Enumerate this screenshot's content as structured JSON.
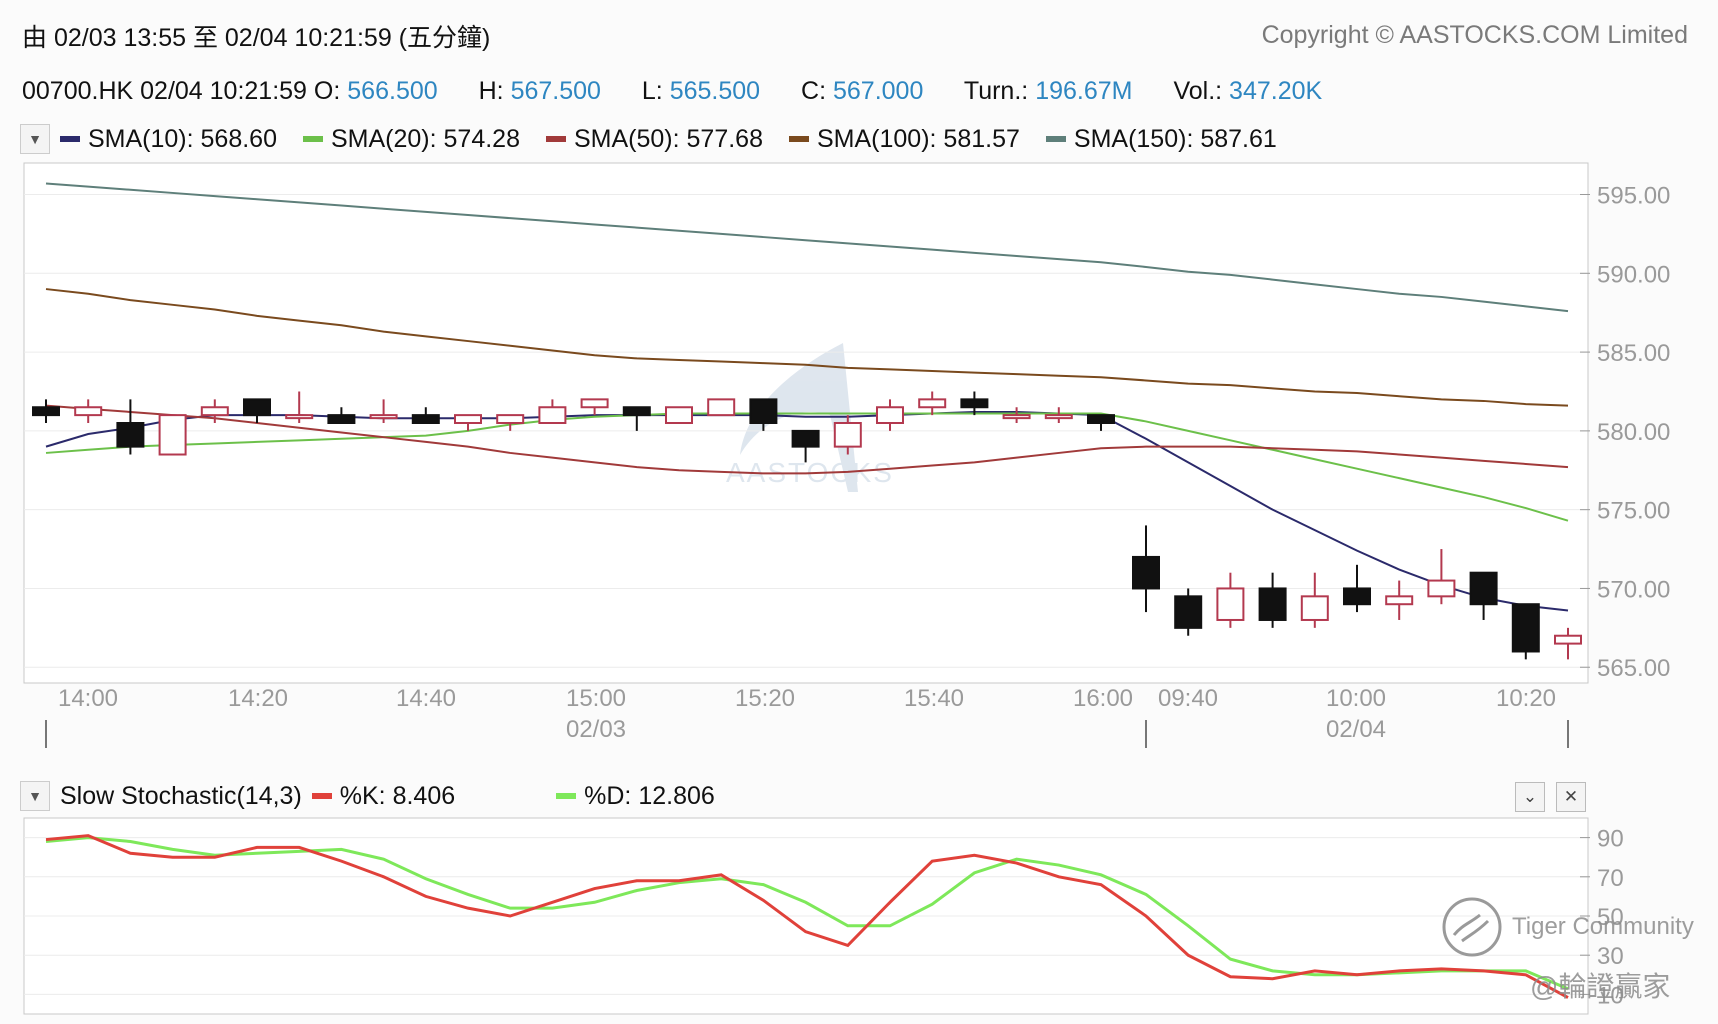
{
  "header": {
    "range_text": "由  02/03 13:55 至  02/04 10:21:59 (五分鐘)",
    "copyright": "Copyright © AASTOCKS.COM Limited"
  },
  "ohlc": {
    "symbol_time": "00700.HK 02/04 10:21:59",
    "o_label": "O:",
    "o_value": "566.500",
    "h_label": "H:",
    "h_value": "567.500",
    "l_label": "L:",
    "l_value": "565.500",
    "c_label": "C:",
    "c_value": "567.000",
    "turn_label": "Turn.:",
    "turn_value": "196.67M",
    "vol_label": "Vol.:",
    "vol_value": "347.20K"
  },
  "sma_legend": [
    {
      "label": "SMA(10): 568.60",
      "color": "#2b2a6b"
    },
    {
      "label": "SMA(20): 574.28",
      "color": "#6cc04a"
    },
    {
      "label": "SMA(50): 577.68",
      "color": "#a13a3a"
    },
    {
      "label": "SMA(100): 581.57",
      "color": "#7a4a1e"
    },
    {
      "label": "SMA(150): 587.61",
      "color": "#5e7f7a"
    }
  ],
  "stoch_legend": {
    "title": "Slow Stochastic(14,3)",
    "k_label": "%K: 8.406",
    "k_color": "#e0413a",
    "d_label": "%D: 12.806",
    "d_color": "#7ee85a"
  },
  "watermarks": {
    "chart_logo": "AASTOCKS",
    "tiger": "Tiger Community",
    "user": "@輪證贏家"
  },
  "chart_data": [
    {
      "type": "candlestick",
      "title": "",
      "ylim": [
        564,
        597
      ],
      "y_ticks": [
        "595.00",
        "590.00",
        "585.00",
        "580.00",
        "575.00",
        "570.00",
        "565.00"
      ],
      "x_ticks": [
        "14:00",
        "14:20",
        "14:40",
        "15:00",
        "15:20",
        "15:40",
        "16:00",
        "09:40",
        "10:00",
        "10:20"
      ],
      "date_labels": [
        "02/03",
        "02/04"
      ],
      "candles": [
        {
          "o": 581.5,
          "h": 582.0,
          "l": 580.5,
          "c": 581.0
        },
        {
          "o": 581.0,
          "h": 582.0,
          "l": 580.5,
          "c": 581.5
        },
        {
          "o": 580.5,
          "h": 582.0,
          "l": 578.5,
          "c": 579.0
        },
        {
          "o": 578.5,
          "h": 581.0,
          "l": 578.5,
          "c": 581.0
        },
        {
          "o": 581.0,
          "h": 582.0,
          "l": 580.5,
          "c": 581.5
        },
        {
          "o": 582.0,
          "h": 582.0,
          "l": 580.5,
          "c": 581.0
        },
        {
          "o": 581.0,
          "h": 582.5,
          "l": 580.5,
          "c": 581.0
        },
        {
          "o": 581.0,
          "h": 581.5,
          "l": 580.5,
          "c": 580.5
        },
        {
          "o": 581.0,
          "h": 582.0,
          "l": 580.5,
          "c": 581.0
        },
        {
          "o": 581.0,
          "h": 581.5,
          "l": 580.5,
          "c": 580.5
        },
        {
          "o": 580.5,
          "h": 581.0,
          "l": 580.0,
          "c": 581.0
        },
        {
          "o": 580.5,
          "h": 581.0,
          "l": 580.0,
          "c": 581.0
        },
        {
          "o": 580.5,
          "h": 582.0,
          "l": 580.5,
          "c": 581.5
        },
        {
          "o": 581.5,
          "h": 582.0,
          "l": 581.0,
          "c": 582.0
        },
        {
          "o": 581.5,
          "h": 581.5,
          "l": 580.0,
          "c": 581.0
        },
        {
          "o": 580.5,
          "h": 581.5,
          "l": 580.5,
          "c": 581.5
        },
        {
          "o": 581.0,
          "h": 582.0,
          "l": 581.0,
          "c": 582.0
        },
        {
          "o": 582.0,
          "h": 582.0,
          "l": 580.0,
          "c": 580.5
        },
        {
          "o": 580.0,
          "h": 580.0,
          "l": 578.0,
          "c": 579.0
        },
        {
          "o": 579.0,
          "h": 581.0,
          "l": 578.5,
          "c": 580.5
        },
        {
          "o": 580.5,
          "h": 582.0,
          "l": 580.0,
          "c": 581.5
        },
        {
          "o": 581.5,
          "h": 582.5,
          "l": 581.0,
          "c": 582.0
        },
        {
          "o": 582.0,
          "h": 582.5,
          "l": 581.0,
          "c": 581.5
        },
        {
          "o": 581.0,
          "h": 581.5,
          "l": 580.5,
          "c": 581.0
        },
        {
          "o": 581.0,
          "h": 581.5,
          "l": 580.5,
          "c": 581.0
        },
        {
          "o": 581.0,
          "h": 581.0,
          "l": 580.0,
          "c": 580.5
        },
        {
          "o": 572.0,
          "h": 574.0,
          "l": 568.5,
          "c": 570.0
        },
        {
          "o": 569.5,
          "h": 570.0,
          "l": 567.0,
          "c": 567.5
        },
        {
          "o": 568.0,
          "h": 571.0,
          "l": 567.5,
          "c": 570.0
        },
        {
          "o": 570.0,
          "h": 571.0,
          "l": 567.5,
          "c": 568.0
        },
        {
          "o": 568.0,
          "h": 571.0,
          "l": 567.5,
          "c": 569.5
        },
        {
          "o": 570.0,
          "h": 571.5,
          "l": 568.5,
          "c": 569.0
        },
        {
          "o": 569.0,
          "h": 570.5,
          "l": 568.0,
          "c": 569.5
        },
        {
          "o": 569.5,
          "h": 572.5,
          "l": 569.0,
          "c": 570.5
        },
        {
          "o": 571.0,
          "h": 571.0,
          "l": 568.0,
          "c": 569.0
        },
        {
          "o": 569.0,
          "h": 569.0,
          "l": 565.5,
          "c": 566.0
        },
        {
          "o": 566.5,
          "h": 567.5,
          "l": 565.5,
          "c": 567.0
        }
      ],
      "series": [
        {
          "name": "SMA(10)",
          "values": [
            579.0,
            579.8,
            580.2,
            580.7,
            581.0,
            581.0,
            581.0,
            580.9,
            580.8,
            580.8,
            580.8,
            580.8,
            580.9,
            581.0,
            581.0,
            581.0,
            581.0,
            581.0,
            580.9,
            580.9,
            581.0,
            581.1,
            581.2,
            581.2,
            581.1,
            581.0,
            579.5,
            578.0,
            576.5,
            575.0,
            573.7,
            572.4,
            571.2,
            570.2,
            569.4,
            568.9,
            568.6
          ]
        },
        {
          "name": "SMA(20)",
          "values": [
            578.6,
            578.8,
            579.0,
            579.1,
            579.2,
            579.3,
            579.4,
            579.5,
            579.6,
            579.7,
            580.0,
            580.4,
            580.7,
            580.9,
            581.0,
            581.1,
            581.1,
            581.1,
            581.1,
            581.1,
            581.1,
            581.1,
            581.1,
            581.1,
            581.1,
            581.1,
            580.6,
            580.0,
            579.4,
            578.8,
            578.2,
            577.6,
            577.0,
            576.4,
            575.8,
            575.1,
            574.3
          ]
        },
        {
          "name": "SMA(50)",
          "values": [
            581.6,
            581.4,
            581.2,
            581.0,
            580.8,
            580.5,
            580.2,
            579.9,
            579.6,
            579.3,
            579.0,
            578.6,
            578.3,
            578.0,
            577.7,
            577.5,
            577.4,
            577.3,
            577.3,
            577.4,
            577.6,
            577.8,
            578.0,
            578.3,
            578.6,
            578.9,
            579.0,
            579.0,
            579.0,
            578.9,
            578.8,
            578.7,
            578.5,
            578.3,
            578.1,
            577.9,
            577.7
          ]
        },
        {
          "name": "SMA(100)",
          "values": [
            589.0,
            588.7,
            588.3,
            588.0,
            587.7,
            587.3,
            587.0,
            586.7,
            586.3,
            586.0,
            585.7,
            585.4,
            585.1,
            584.8,
            584.6,
            584.5,
            584.4,
            584.3,
            584.2,
            584.0,
            583.9,
            583.8,
            583.7,
            583.6,
            583.5,
            583.4,
            583.2,
            583.0,
            582.9,
            582.7,
            582.5,
            582.4,
            582.2,
            582.0,
            581.9,
            581.7,
            581.6
          ]
        },
        {
          "name": "SMA(150)",
          "values": [
            595.7,
            595.5,
            595.3,
            595.1,
            594.9,
            594.7,
            594.5,
            594.3,
            594.1,
            593.9,
            593.7,
            593.5,
            593.3,
            593.1,
            592.9,
            592.7,
            592.5,
            592.3,
            592.1,
            591.9,
            591.7,
            591.5,
            591.3,
            591.1,
            590.9,
            590.7,
            590.4,
            590.1,
            589.9,
            589.6,
            589.3,
            589.0,
            588.7,
            588.5,
            588.2,
            587.9,
            587.6
          ]
        }
      ]
    },
    {
      "type": "line",
      "title": "",
      "ylim": [
        0,
        100
      ],
      "y_ticks": [
        "90",
        "70",
        "50",
        "30",
        "10"
      ],
      "series": [
        {
          "name": "%K",
          "values": [
            89,
            91,
            82,
            80,
            80,
            85,
            85,
            78,
            70,
            60,
            54,
            50,
            57,
            64,
            68,
            68,
            71,
            58,
            42,
            35,
            57,
            78,
            81,
            77,
            70,
            66,
            50,
            30,
            19,
            18,
            22,
            20,
            22,
            23,
            22,
            20,
            8.4
          ]
        },
        {
          "name": "%D",
          "values": [
            88,
            90,
            88,
            84,
            81,
            82,
            83,
            84,
            79,
            69,
            61,
            54,
            54,
            57,
            63,
            67,
            69,
            66,
            57,
            45,
            45,
            56,
            72,
            79,
            76,
            71,
            61,
            45,
            28,
            22,
            20,
            20,
            21,
            22,
            22,
            22,
            12.8
          ]
        }
      ]
    }
  ]
}
